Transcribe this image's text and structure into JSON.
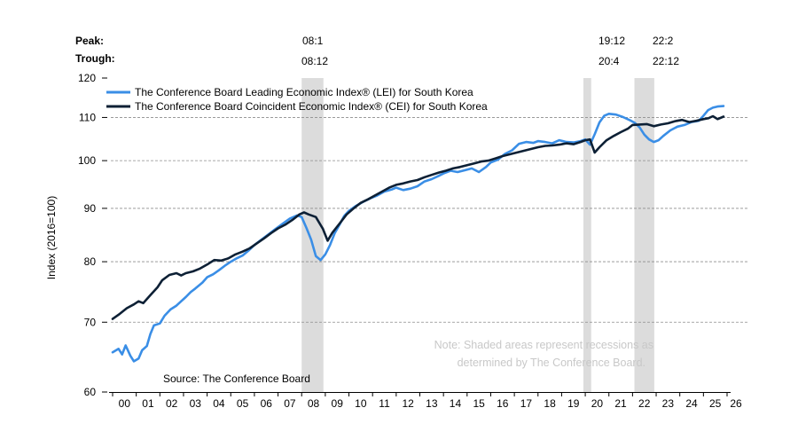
{
  "chart_data": {
    "type": "line",
    "title": "",
    "ylabel": "Index (2016=100)",
    "xlabel": "",
    "y_scale": "log",
    "ylim": [
      60,
      120
    ],
    "y_ticks": [
      60,
      70,
      80,
      90,
      100,
      110,
      120
    ],
    "grid": "horizontal dashed at 70, 80, 90, 100, 110",
    "x_tick_labels": [
      "00",
      "01",
      "02",
      "03",
      "04",
      "05",
      "06",
      "07",
      "08",
      "09",
      "10",
      "11",
      "12",
      "13",
      "14",
      "15",
      "16",
      "17",
      "18",
      "19",
      "20",
      "21",
      "22",
      "23",
      "24",
      "25",
      "26"
    ],
    "xlim": [
      2000,
      2026
    ],
    "legend": {
      "placement": "top-left",
      "entries": [
        {
          "name": "The Conference Board Leading Economic Index® (LEI) for South Korea",
          "color": "#3a8ee6"
        },
        {
          "name": "The Conference Board Coincident Economic Index® (CEI) for South Korea",
          "color": "#0d2035"
        }
      ]
    },
    "peak_trough": {
      "peak_label": "Peak:",
      "trough_label": "Trough:",
      "pairs": [
        {
          "peak": "08:1",
          "trough": "08:12"
        },
        {
          "peak": "19:12",
          "trough": "20:4"
        },
        {
          "peak": "22:2",
          "trough": "22:12"
        }
      ]
    },
    "recessions": [
      {
        "start": 2008.0,
        "end": 2008.92
      },
      {
        "start": 2019.92,
        "end": 2020.25
      },
      {
        "start": 2022.08,
        "end": 2022.92
      }
    ],
    "series": [
      {
        "name": "The Conference Board Leading Economic Index® (LEI) for South Korea",
        "color": "#3a8ee6",
        "x": [
          2000.0,
          2000.25,
          2000.4,
          2000.55,
          2000.75,
          2000.9,
          2001.1,
          2001.25,
          2001.45,
          2001.6,
          2001.75,
          2002.0,
          2002.2,
          2002.45,
          2002.7,
          2002.9,
          2003.1,
          2003.3,
          2003.5,
          2003.8,
          2004.0,
          2004.25,
          2004.5,
          2004.75,
          2005.0,
          2005.25,
          2005.5,
          2005.75,
          2006.0,
          2006.3,
          2006.6,
          2006.9,
          2007.2,
          2007.5,
          2007.8,
          2008.0,
          2008.2,
          2008.4,
          2008.6,
          2008.8,
          2009.0,
          2009.2,
          2009.4,
          2009.6,
          2009.8,
          2010.0,
          2010.3,
          2010.6,
          2010.9,
          2011.2,
          2011.5,
          2011.8,
          2012.0,
          2012.3,
          2012.6,
          2012.9,
          2013.2,
          2013.5,
          2013.8,
          2014.0,
          2014.3,
          2014.6,
          2014.9,
          2015.2,
          2015.5,
          2015.8,
          2016.0,
          2016.3,
          2016.6,
          2016.9,
          2017.2,
          2017.5,
          2017.8,
          2018.0,
          2018.3,
          2018.6,
          2018.9,
          2019.2,
          2019.5,
          2019.8,
          2020.0,
          2020.2,
          2020.4,
          2020.6,
          2020.8,
          2021.0,
          2021.3,
          2021.6,
          2021.9,
          2022.1,
          2022.3,
          2022.5,
          2022.7,
          2022.9,
          2023.1,
          2023.3,
          2023.6,
          2023.9,
          2024.2,
          2024.5,
          2024.8,
          2025.0,
          2025.2,
          2025.4,
          2025.6,
          2025.85
        ],
        "values": [
          65.5,
          66.0,
          65.2,
          66.5,
          65.0,
          64.2,
          64.6,
          65.8,
          66.4,
          68.2,
          69.5,
          69.8,
          71.0,
          72.0,
          72.6,
          73.3,
          74.0,
          74.8,
          75.4,
          76.4,
          77.3,
          77.8,
          78.5,
          79.3,
          80.0,
          80.6,
          81.1,
          82.0,
          83.0,
          84.0,
          85.0,
          86.0,
          87.0,
          88.0,
          88.6,
          88.3,
          86.2,
          84.0,
          81.0,
          80.3,
          81.3,
          83.0,
          85.2,
          86.8,
          88.5,
          89.5,
          90.5,
          91.3,
          92.0,
          92.6,
          93.4,
          93.8,
          94.2,
          93.7,
          94.0,
          94.5,
          95.5,
          96.0,
          96.7,
          97.2,
          97.8,
          97.5,
          97.9,
          98.3,
          97.5,
          98.6,
          99.6,
          100.2,
          101.5,
          102.3,
          103.8,
          104.2,
          104.0,
          104.4,
          104.2,
          103.9,
          104.6,
          104.2,
          104.1,
          104.4,
          104.8,
          103.6,
          106.0,
          108.8,
          110.4,
          110.9,
          110.7,
          110.1,
          109.3,
          108.7,
          107.6,
          105.9,
          104.8,
          104.2,
          104.6,
          105.6,
          106.9,
          107.8,
          108.2,
          108.9,
          109.2,
          110.4,
          111.8,
          112.4,
          112.7,
          112.8
        ]
      },
      {
        "name": "The Conference Board Coincident Economic Index® (CEI) for South Korea",
        "color": "#0d2035",
        "x": [
          2000.0,
          2000.3,
          2000.6,
          2000.9,
          2001.1,
          2001.3,
          2001.6,
          2001.9,
          2002.1,
          2002.4,
          2002.7,
          2002.9,
          2003.1,
          2003.4,
          2003.7,
          2004.0,
          2004.3,
          2004.6,
          2004.9,
          2005.2,
          2005.5,
          2005.8,
          2006.1,
          2006.4,
          2006.7,
          2007.0,
          2007.3,
          2007.6,
          2007.9,
          2008.1,
          2008.3,
          2008.6,
          2008.9,
          2009.1,
          2009.3,
          2009.6,
          2009.9,
          2010.2,
          2010.5,
          2010.8,
          2011.1,
          2011.4,
          2011.7,
          2012.0,
          2012.3,
          2012.6,
          2012.9,
          2013.2,
          2013.5,
          2013.8,
          2014.1,
          2014.4,
          2014.7,
          2015.0,
          2015.3,
          2015.6,
          2015.9,
          2016.2,
          2016.5,
          2016.8,
          2017.1,
          2017.4,
          2017.7,
          2018.0,
          2018.3,
          2018.6,
          2018.9,
          2019.2,
          2019.5,
          2019.8,
          2020.0,
          2020.2,
          2020.4,
          2020.6,
          2020.9,
          2021.2,
          2021.5,
          2021.8,
          2022.0,
          2022.3,
          2022.6,
          2022.9,
          2023.2,
          2023.5,
          2023.8,
          2024.1,
          2024.4,
          2024.7,
          2025.0,
          2025.2,
          2025.4,
          2025.6,
          2025.85
        ],
        "values": [
          70.5,
          71.3,
          72.2,
          72.8,
          73.3,
          73.0,
          74.3,
          75.6,
          76.8,
          77.7,
          78.0,
          77.6,
          78.0,
          78.3,
          78.8,
          79.5,
          80.3,
          80.2,
          80.6,
          81.3,
          81.8,
          82.4,
          83.3,
          84.2,
          85.2,
          86.1,
          86.8,
          87.7,
          88.8,
          89.2,
          88.8,
          88.3,
          86.0,
          83.8,
          85.3,
          87.0,
          88.8,
          90.0,
          91.1,
          91.8,
          92.6,
          93.4,
          94.2,
          94.8,
          95.1,
          95.5,
          95.8,
          96.4,
          96.9,
          97.4,
          97.8,
          98.3,
          98.6,
          99.0,
          99.4,
          99.8,
          100.0,
          100.5,
          101.0,
          101.4,
          101.8,
          102.2,
          102.6,
          103.0,
          103.3,
          103.4,
          103.6,
          103.9,
          103.7,
          104.2,
          104.6,
          104.8,
          101.8,
          103.0,
          104.6,
          105.6,
          106.5,
          107.3,
          108.2,
          108.3,
          108.4,
          107.9,
          108.3,
          108.6,
          109.1,
          109.4,
          108.9,
          109.2,
          109.6,
          109.8,
          110.3,
          109.6,
          110.2
        ]
      }
    ]
  },
  "source_text": "Source: The Conference Board",
  "note_line1": "Note: Shaded areas represent recessions as",
  "note_line2": "determined by The Conference Board."
}
